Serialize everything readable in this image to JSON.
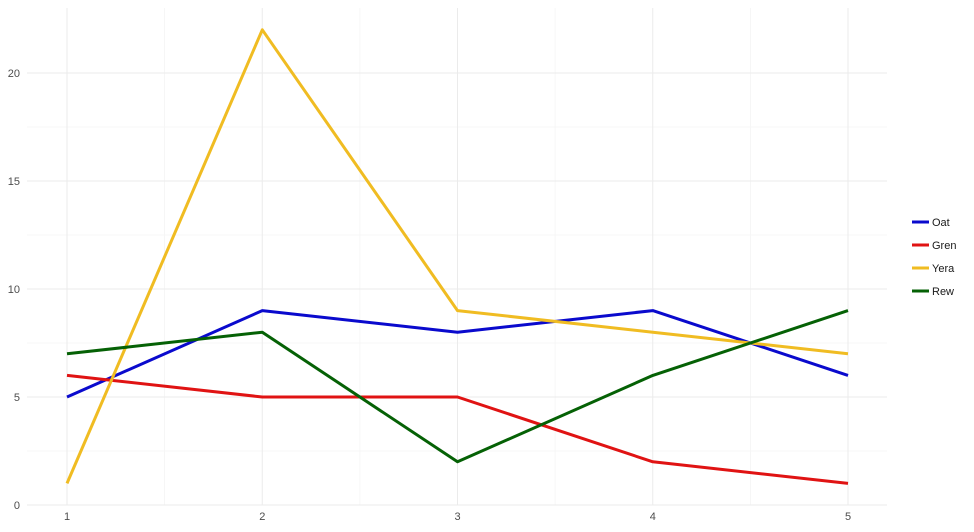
{
  "chart_data": {
    "type": "line",
    "title": "",
    "xlabel": "",
    "ylabel": "",
    "x": [
      1,
      2,
      3,
      4,
      5
    ],
    "xlim": [
      1,
      5
    ],
    "ylim": [
      0,
      22
    ],
    "x_ticks": [
      1,
      2,
      3,
      4,
      5
    ],
    "y_ticks": [
      0,
      5,
      10,
      15,
      20
    ],
    "grid": true,
    "legend_position": "right",
    "series": [
      {
        "name": "Oat",
        "color": "#0a0acd",
        "values": [
          5,
          9,
          8,
          9,
          6
        ]
      },
      {
        "name": "Gren",
        "color": "#e01313",
        "values": [
          6,
          5,
          5,
          2,
          1
        ]
      },
      {
        "name": "Yera",
        "color": "#f0bc22",
        "values": [
          1,
          22,
          9,
          8,
          7
        ]
      },
      {
        "name": "Rew",
        "color": "#056105",
        "values": [
          7,
          8,
          2,
          6,
          9
        ]
      }
    ]
  }
}
